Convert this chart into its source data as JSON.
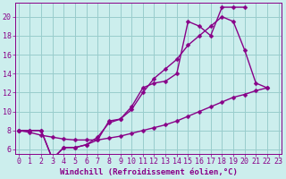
{
  "xlabel": "Windchill (Refroidissement éolien,°C)",
  "background_color": "#cceeed",
  "grid_color": "#99cccc",
  "line_color": "#880088",
  "line1_x": [
    0,
    1,
    2,
    3,
    4,
    5,
    6,
    7,
    8,
    9,
    10,
    11,
    12,
    13,
    14,
    15,
    16,
    17,
    18,
    19,
    20
  ],
  "line1_y": [
    8.0,
    8.0,
    8.0,
    5.0,
    6.2,
    6.2,
    6.5,
    7.0,
    9.0,
    9.2,
    10.5,
    12.5,
    13.0,
    13.2,
    14.0,
    19.5,
    19.0,
    18.0,
    21.0,
    21.0,
    21.0
  ],
  "line2_x": [
    0,
    1,
    2,
    3,
    4,
    5,
    6,
    7,
    8,
    9,
    10,
    11,
    12,
    13,
    14,
    15,
    16,
    17,
    18,
    19,
    20,
    21,
    22
  ],
  "line2_y": [
    8.0,
    8.0,
    8.0,
    5.0,
    6.2,
    6.2,
    6.5,
    7.3,
    8.8,
    9.2,
    10.2,
    12.0,
    13.5,
    14.5,
    15.5,
    17.0,
    18.0,
    19.0,
    20.0,
    19.5,
    16.5,
    13.0,
    12.5
  ],
  "line3_x": [
    0,
    1,
    2,
    3,
    4,
    5,
    6,
    7,
    8,
    9,
    10,
    11,
    12,
    13,
    14,
    15,
    16,
    17,
    18,
    19,
    20,
    21,
    22
  ],
  "line3_y": [
    8.0,
    7.8,
    7.5,
    7.3,
    7.1,
    7.0,
    7.0,
    7.0,
    7.2,
    7.4,
    7.7,
    8.0,
    8.3,
    8.6,
    9.0,
    9.5,
    10.0,
    10.5,
    11.0,
    11.5,
    11.8,
    12.2,
    12.5
  ],
  "xlim": [
    -0.3,
    23.3
  ],
  "ylim": [
    5.5,
    21.5
  ],
  "yticks": [
    6,
    8,
    10,
    12,
    14,
    16,
    18,
    20
  ],
  "xticks": [
    0,
    1,
    2,
    3,
    4,
    5,
    6,
    7,
    8,
    9,
    10,
    11,
    12,
    13,
    14,
    15,
    16,
    17,
    18,
    19,
    20,
    21,
    22,
    23
  ],
  "marker": "D",
  "markersize": 2.5,
  "linewidth": 1.0,
  "xlabel_fontsize": 6.5,
  "tick_fontsize": 6.0
}
